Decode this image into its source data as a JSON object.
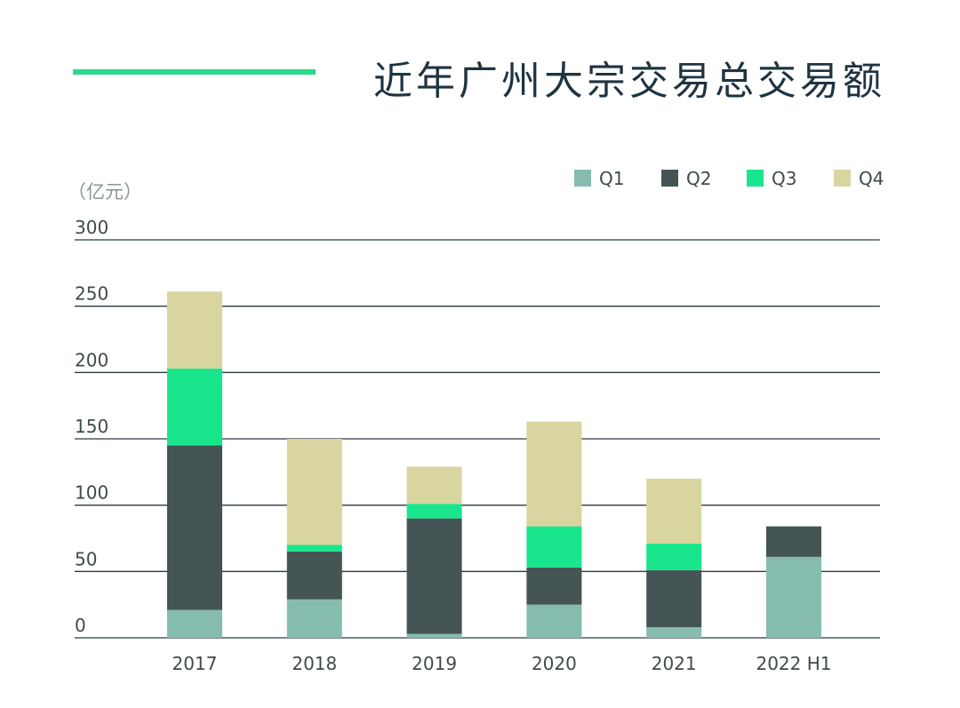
{
  "chart_data": {
    "type": "bar",
    "stacked": true,
    "title": "近年广州大宗交易总交易额",
    "unit_label": "（亿元）",
    "categories": [
      "2017",
      "2018",
      "2019",
      "2020",
      "2021",
      "2022 H1"
    ],
    "series": [
      {
        "name": "Q1",
        "color": "#86bcb0",
        "values": [
          21,
          29,
          3,
          25,
          8,
          61
        ]
      },
      {
        "name": "Q2",
        "color": "#455555",
        "values": [
          124,
          36,
          87,
          28,
          43,
          23
        ]
      },
      {
        "name": "Q3",
        "color": "#19e68c",
        "values": [
          58,
          5,
          11,
          31,
          20,
          0
        ]
      },
      {
        "name": "Q4",
        "color": "#d8d5a0",
        "values": [
          58,
          80,
          28,
          79,
          49,
          0
        ]
      }
    ],
    "ylim": [
      0,
      300
    ],
    "yticks": [
      "0",
      "50",
      "100",
      "150",
      "200",
      "250",
      "300"
    ],
    "grid": true,
    "legend_position": "top-right",
    "accent_color": "#2ed88a"
  }
}
